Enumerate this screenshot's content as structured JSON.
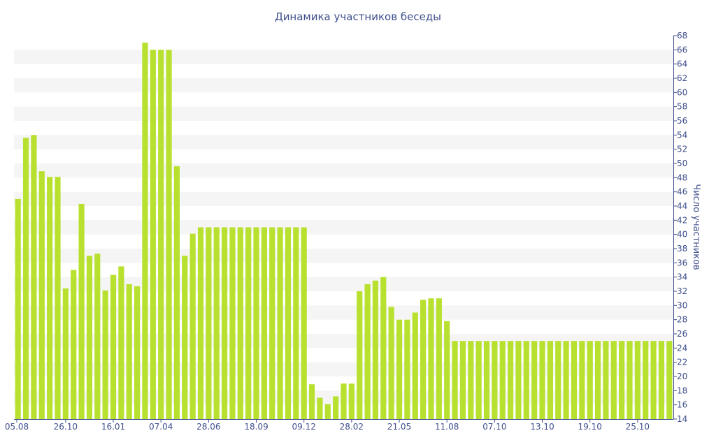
{
  "chart_data": {
    "type": "bar",
    "title": "Динамика участников беседы",
    "xlabel": "",
    "ylabel": "Число участников",
    "ylim": [
      14,
      68
    ],
    "yticks": [
      14,
      16,
      18,
      20,
      22,
      24,
      26,
      28,
      30,
      32,
      34,
      36,
      38,
      40,
      42,
      44,
      46,
      48,
      50,
      52,
      54,
      56,
      58,
      60,
      62,
      64,
      66,
      68
    ],
    "y_axis_position": "right",
    "grid": "alternating horizontal bands",
    "colors": {
      "bar": "#b8e02e",
      "band": "#f5f5f5",
      "text": "#3f4f8c",
      "axis": "#3f4f8c"
    },
    "x_tick_labels": [
      {
        "index": 0,
        "label": "05.08"
      },
      {
        "index": 6,
        "label": "26.10"
      },
      {
        "index": 12,
        "label": "16.01"
      },
      {
        "index": 18,
        "label": "07.04"
      },
      {
        "index": 24,
        "label": "28.06"
      },
      {
        "index": 30,
        "label": "18.09"
      },
      {
        "index": 36,
        "label": "09.12"
      },
      {
        "index": 42,
        "label": "28.02"
      },
      {
        "index": 48,
        "label": "21.05"
      },
      {
        "index": 54,
        "label": "11.08"
      },
      {
        "index": 60,
        "label": "07.10"
      },
      {
        "index": 66,
        "label": "13.10"
      },
      {
        "index": 72,
        "label": "19.10"
      },
      {
        "index": 78,
        "label": "25.10"
      }
    ],
    "values": [
      45,
      53.6,
      54,
      48.9,
      48.1,
      48.1,
      32.4,
      35,
      44.3,
      37,
      37.3,
      32.1,
      34.3,
      35.5,
      33,
      32.7,
      67,
      66,
      66,
      66,
      49.6,
      37,
      40.1,
      41,
      41,
      41,
      41,
      41,
      41,
      41,
      41,
      41,
      41,
      41,
      41,
      41,
      41,
      18.9,
      17,
      16.1,
      17.2,
      19,
      19,
      32,
      33,
      33.5,
      34,
      29.8,
      28,
      28,
      29,
      30.8,
      31,
      31,
      27.8,
      25,
      25,
      25,
      25,
      25,
      25,
      25,
      25,
      25,
      25,
      25,
      25,
      25,
      25,
      25,
      25,
      25,
      25,
      25,
      25,
      25,
      25,
      25,
      25,
      25,
      25,
      25,
      25
    ]
  }
}
